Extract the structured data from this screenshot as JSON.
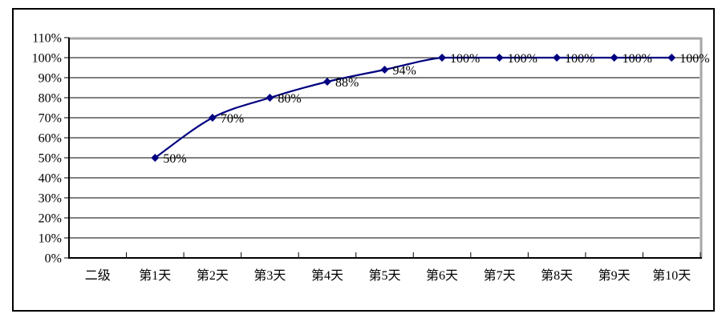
{
  "chart_data": {
    "type": "line",
    "title": "",
    "xlabel": "",
    "ylabel": "",
    "categories": [
      "二级",
      "第1天",
      "第2天",
      "第3天",
      "第4天",
      "第5天",
      "第6天",
      "第7天",
      "第8天",
      "第9天",
      "第10天"
    ],
    "series": [
      {
        "name": "",
        "values": [
          null,
          50,
          70,
          80,
          88,
          94,
          100,
          100,
          100,
          100,
          100
        ],
        "point_labels": [
          null,
          "50%",
          "70%",
          "80%",
          "88%",
          "94%",
          "100%",
          "100%",
          "100%",
          "100%",
          "100%"
        ],
        "color": "#000080",
        "marker": "diamond",
        "smooth": true
      }
    ],
    "ylim": [
      0,
      110
    ],
    "y_tick_step": 10,
    "y_tick_labels": [
      "0%",
      "10%",
      "20%",
      "30%",
      "40%",
      "50%",
      "60%",
      "70%",
      "80%",
      "90%",
      "100%",
      "110%"
    ],
    "grid": true,
    "legend_position": "none"
  },
  "style": {
    "line_color": "#000080",
    "marker_color": "#000080",
    "gridline_color": "#000000",
    "axis_color": "#000000",
    "plot_border_color": "#A6A6A6",
    "outer_border_color": "#000000",
    "background_color": "#FFFFFF",
    "text_color": "#000000"
  }
}
